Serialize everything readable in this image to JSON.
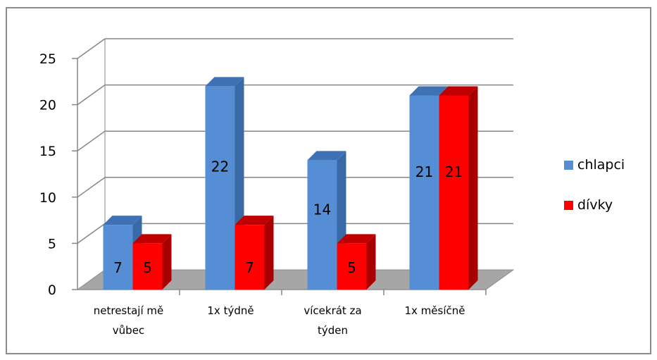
{
  "chart_data": {
    "type": "bar",
    "variant": "3d-clustered-column",
    "categories": [
      [
        "netrestají mě",
        "vůbec"
      ],
      [
        "1x týdně"
      ],
      [
        "vícekrát za",
        "týden"
      ],
      [
        "1x měsíčně"
      ]
    ],
    "series": [
      {
        "name": "chlapci",
        "values": [
          7,
          22,
          14,
          21
        ],
        "color": "#558ed5",
        "side_color": "#3a6aa6",
        "top_color": "#3f72b5"
      },
      {
        "name": "dívky",
        "values": [
          5,
          7,
          5,
          21
        ],
        "color": "#ff0000",
        "side_color": "#a80000",
        "top_color": "#c00000"
      }
    ],
    "ylim": [
      0,
      25
    ],
    "yticks": [
      "0",
      "5",
      "10",
      "15",
      "20",
      "25"
    ],
    "grid": true,
    "legend": "right",
    "data_labels": true
  }
}
